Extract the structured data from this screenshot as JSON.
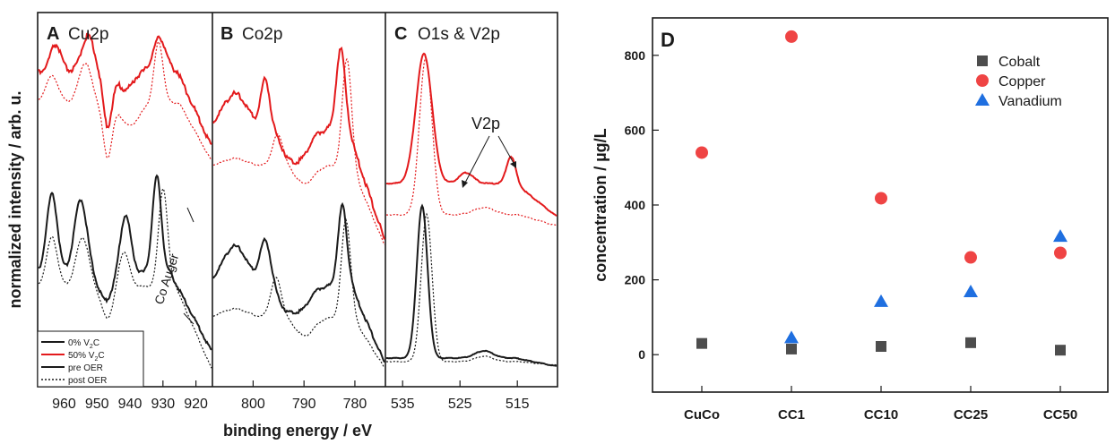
{
  "colors": {
    "black": "#1a1a1a",
    "red": "#e31a1c",
    "cobalt": "#4d4d4d",
    "copper": "#ef4444",
    "vanadium": "#1f6fe0"
  },
  "left": {
    "ylabel": "normalized intensity / arb. u.",
    "xlabel": "binding energy / eV",
    "panels": [
      {
        "letter": "A",
        "title": "Cu2p",
        "xlim": [
          968,
          915
        ],
        "ticks": [
          "960",
          "950",
          "940",
          "930",
          "920"
        ],
        "tick_values": [
          960,
          950,
          940,
          930,
          920
        ],
        "annotation": "Co Auger",
        "legend": [
          {
            "label": "0% V",
            "sub": "2",
            "tail": "C",
            "color": "#1a1a1a",
            "dashed": false
          },
          {
            "label": "50% V",
            "sub": "2",
            "tail": "C",
            "color": "#e31a1c",
            "dashed": false
          },
          {
            "label": "pre OER",
            "sub": "",
            "tail": "",
            "color": "#1a1a1a",
            "dashed": false
          },
          {
            "label": "post OER",
            "sub": "",
            "tail": "",
            "color": "#1a1a1a",
            "dashed": true
          }
        ]
      },
      {
        "letter": "B",
        "title": "Co2p",
        "xlim": [
          808,
          774
        ],
        "ticks": [
          "800",
          "790",
          "780"
        ],
        "tick_values": [
          800,
          790,
          780
        ]
      },
      {
        "letter": "C",
        "title": "O1s & V2p",
        "xlim": [
          538,
          508
        ],
        "ticks": [
          "535",
          "525",
          "515"
        ],
        "tick_values": [
          535,
          525,
          515
        ],
        "annotation": "V2p"
      }
    ]
  },
  "chart_data": {
    "type": "scatter",
    "letter": "D",
    "ylabel": "concentration / µg/L",
    "xlabel": "",
    "categories": [
      "CuCo",
      "CC1",
      "CC10",
      "CC25",
      "CC50"
    ],
    "ylim": [
      -100,
      900
    ],
    "yticks": [
      "0",
      "200",
      "400",
      "600",
      "800"
    ],
    "ytick_values": [
      0,
      200,
      400,
      600,
      800
    ],
    "legend_position": "top-right",
    "series": [
      {
        "name": "Cobalt",
        "marker": "square",
        "color": "#4d4d4d",
        "values": [
          30,
          15,
          22,
          32,
          12
        ]
      },
      {
        "name": "Copper",
        "marker": "circle",
        "color": "#ef4444",
        "values": [
          540,
          850,
          418,
          260,
          272
        ]
      },
      {
        "name": "Vanadium",
        "marker": "triangle",
        "color": "#1f6fe0",
        "values": [
          null,
          45,
          142,
          168,
          316
        ]
      }
    ]
  }
}
